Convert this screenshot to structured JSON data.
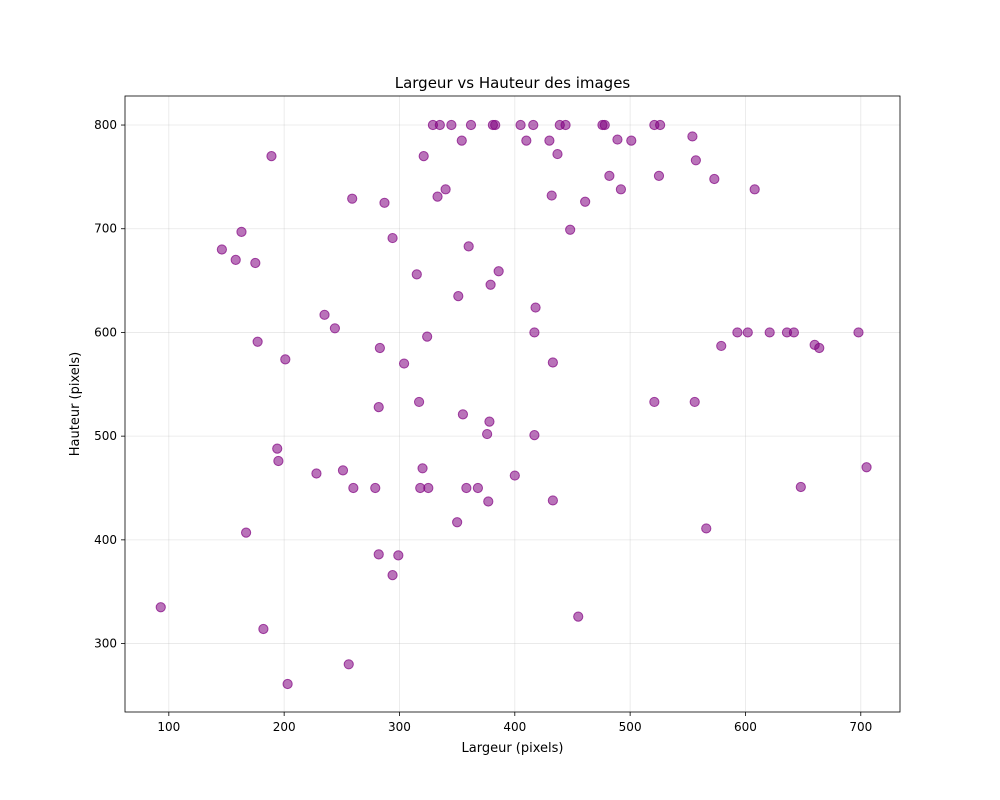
{
  "chart_data": {
    "type": "scatter",
    "title": "Largeur vs Hauteur des images",
    "xlabel": "Largeur (pixels)",
    "ylabel": "Hauteur (pixels)",
    "xlim": [
      62,
      734
    ],
    "ylim": [
      234,
      828
    ],
    "xticks": [
      100,
      200,
      300,
      400,
      500,
      600,
      700
    ],
    "yticks": [
      300,
      400,
      500,
      600,
      700,
      800
    ],
    "grid": true,
    "marker_color": "#800080",
    "marker_alpha": 0.55,
    "points": [
      [
        93,
        335
      ],
      [
        146,
        680
      ],
      [
        158,
        670
      ],
      [
        163,
        697
      ],
      [
        167,
        407
      ],
      [
        175,
        667
      ],
      [
        177,
        591
      ],
      [
        182,
        314
      ],
      [
        189,
        770
      ],
      [
        194,
        488
      ],
      [
        195,
        476
      ],
      [
        201,
        574
      ],
      [
        203,
        261
      ],
      [
        228,
        464
      ],
      [
        235,
        617
      ],
      [
        244,
        604
      ],
      [
        251,
        467
      ],
      [
        256,
        280
      ],
      [
        259,
        729
      ],
      [
        260,
        450
      ],
      [
        279,
        450
      ],
      [
        282,
        528
      ],
      [
        282,
        386
      ],
      [
        283,
        585
      ],
      [
        287,
        725
      ],
      [
        294,
        691
      ],
      [
        294,
        366
      ],
      [
        299,
        385
      ],
      [
        304,
        570
      ],
      [
        315,
        656
      ],
      [
        317,
        533
      ],
      [
        318,
        450
      ],
      [
        320,
        469
      ],
      [
        321,
        770
      ],
      [
        324,
        596
      ],
      [
        325,
        450
      ],
      [
        329,
        800
      ],
      [
        333,
        731
      ],
      [
        335,
        800
      ],
      [
        340,
        738
      ],
      [
        345,
        800
      ],
      [
        350,
        417
      ],
      [
        351,
        635
      ],
      [
        354,
        785
      ],
      [
        355,
        521
      ],
      [
        358,
        450
      ],
      [
        360,
        683
      ],
      [
        362,
        800
      ],
      [
        368,
        450
      ],
      [
        376,
        502
      ],
      [
        377,
        437
      ],
      [
        378,
        514
      ],
      [
        379,
        646
      ],
      [
        381,
        800
      ],
      [
        383,
        800
      ],
      [
        386,
        659
      ],
      [
        400,
        462
      ],
      [
        405,
        800
      ],
      [
        410,
        785
      ],
      [
        416,
        800
      ],
      [
        417,
        501
      ],
      [
        417,
        600
      ],
      [
        418,
        624
      ],
      [
        430,
        785
      ],
      [
        432,
        732
      ],
      [
        433,
        571
      ],
      [
        433,
        438
      ],
      [
        437,
        772
      ],
      [
        439,
        800
      ],
      [
        444,
        800
      ],
      [
        448,
        699
      ],
      [
        455,
        326
      ],
      [
        461,
        726
      ],
      [
        476,
        800
      ],
      [
        478,
        800
      ],
      [
        482,
        751
      ],
      [
        489,
        786
      ],
      [
        492,
        738
      ],
      [
        501,
        785
      ],
      [
        521,
        800
      ],
      [
        521,
        533
      ],
      [
        525,
        751
      ],
      [
        526,
        800
      ],
      [
        554,
        789
      ],
      [
        556,
        533
      ],
      [
        557,
        766
      ],
      [
        566,
        411
      ],
      [
        573,
        748
      ],
      [
        579,
        587
      ],
      [
        593,
        600
      ],
      [
        602,
        600
      ],
      [
        608,
        738
      ],
      [
        621,
        600
      ],
      [
        636,
        600
      ],
      [
        642,
        600
      ],
      [
        648,
        451
      ],
      [
        660,
        588
      ],
      [
        664,
        585
      ],
      [
        698,
        600
      ],
      [
        705,
        470
      ]
    ]
  }
}
